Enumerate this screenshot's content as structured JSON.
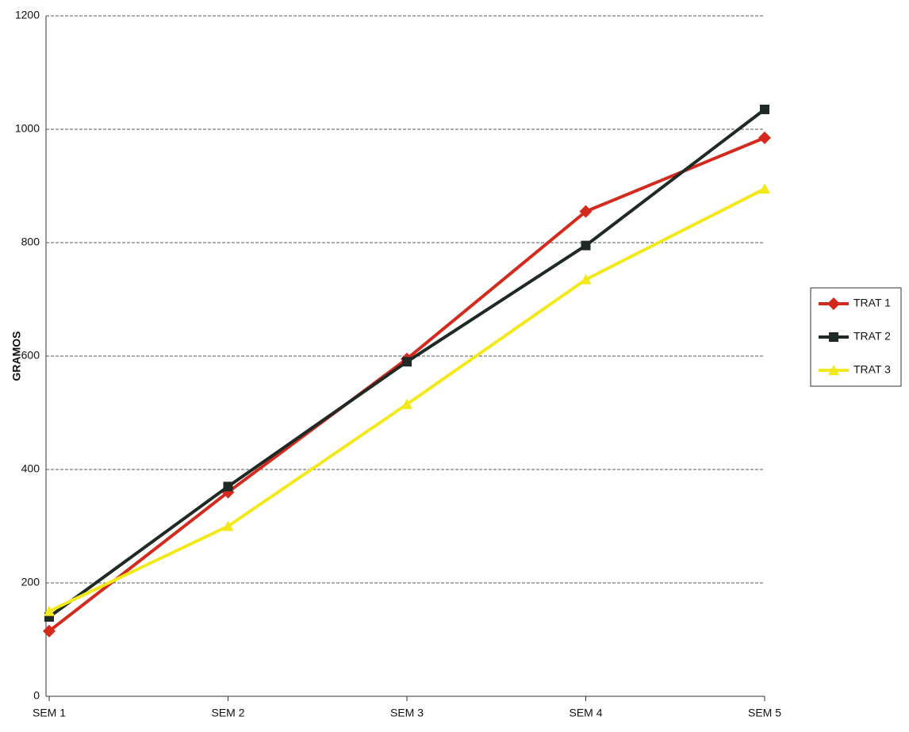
{
  "chart_data": {
    "type": "line",
    "y_label": "GRAMOS",
    "categories": [
      "SEM 1",
      "SEM 2",
      "SEM 3",
      "SEM 4",
      "SEM 5"
    ],
    "series": [
      {
        "name": "TRAT 1",
        "color": "#d42a1e",
        "marker": "diamond",
        "values": [
          115,
          360,
          595,
          855,
          985
        ]
      },
      {
        "name": "TRAT 2",
        "color": "#1f2a24",
        "marker": "square",
        "values": [
          140,
          370,
          590,
          795,
          1035
        ]
      },
      {
        "name": "TRAT 3",
        "color": "#f2e81a",
        "marker": "triangle",
        "values": [
          150,
          300,
          515,
          735,
          895
        ]
      }
    ],
    "ylim": [
      0,
      1200
    ],
    "yticks": [
      0,
      200,
      400,
      600,
      800,
      1000,
      1200
    ],
    "grid": true,
    "legend": "right"
  }
}
